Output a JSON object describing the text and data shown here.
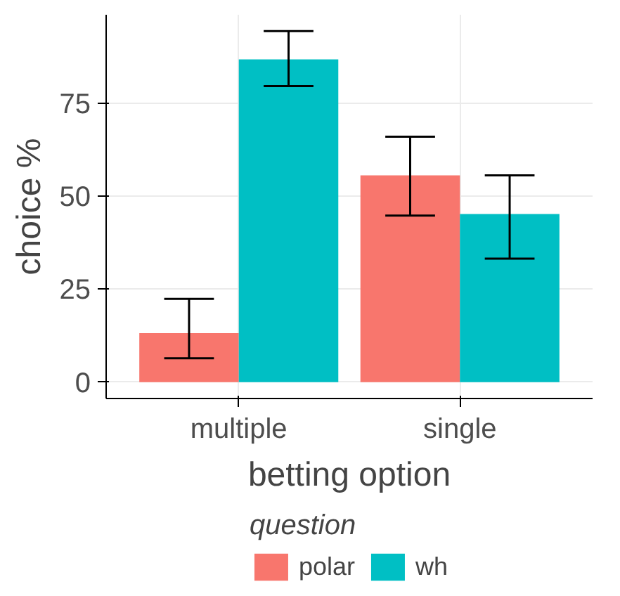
{
  "chart_data": {
    "type": "bar",
    "xlabel": "betting option",
    "ylabel": "choice %",
    "legend_title": "question",
    "categories": [
      "multiple",
      "single"
    ],
    "series": [
      {
        "name": "polar",
        "color": "#f8766d",
        "values": [
          13.2,
          55.6
        ],
        "errors": [
          [
            6.4,
            22.4
          ],
          [
            44.8,
            66.0
          ]
        ]
      },
      {
        "name": "wh",
        "color": "#00bfc4",
        "values": [
          86.8,
          45.2
        ],
        "errors": [
          [
            79.6,
            94.4
          ],
          [
            33.2,
            55.6
          ]
        ]
      }
    ],
    "ylim": [
      -4.4,
      98.8
    ],
    "yticks": [
      0,
      25,
      50,
      75
    ],
    "grid": true,
    "legend": "bottom"
  }
}
